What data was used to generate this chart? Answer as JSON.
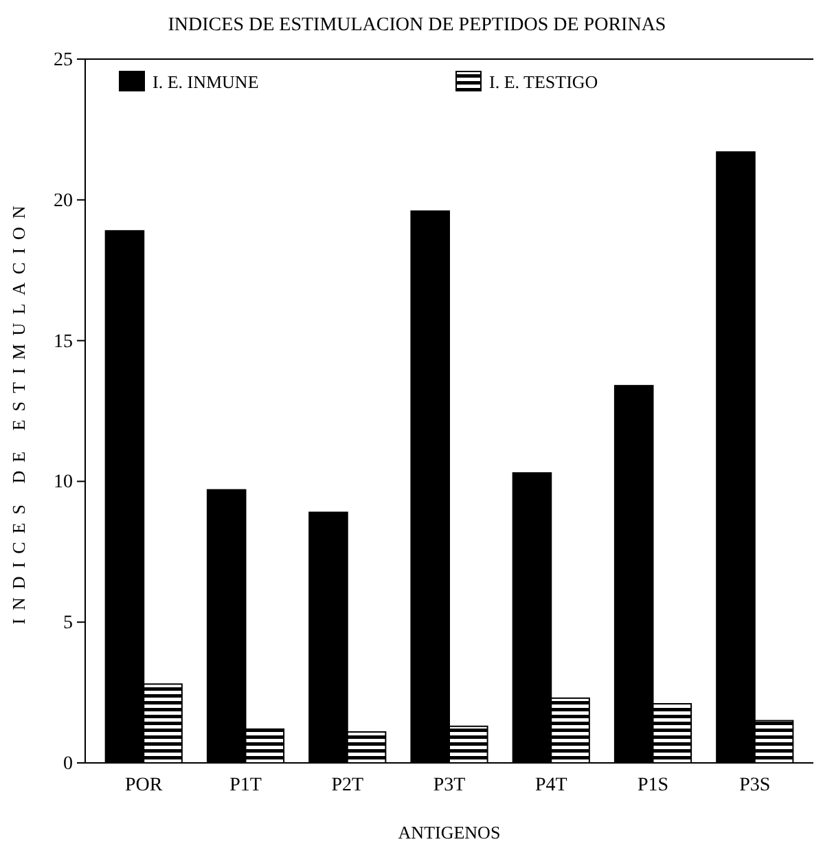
{
  "chart_data": {
    "type": "bar",
    "title": "INDICES DE ESTIMULACION DE PEPTIDOS DE PORINAS",
    "xlabel": "ANTIGENOS",
    "ylabel": "INDICES DE ESTIMULACION",
    "categories": [
      "POR",
      "P1T",
      "P2T",
      "P3T",
      "P4T",
      "P1S",
      "P3S"
    ],
    "series": [
      {
        "name": "I. E. INMUNE",
        "color": "#000000",
        "values": [
          18.9,
          9.7,
          8.9,
          19.6,
          10.3,
          13.4,
          21.7
        ]
      },
      {
        "name": "I. E. TESTIGO",
        "color": "#000000",
        "values": [
          2.8,
          1.2,
          1.1,
          1.3,
          2.3,
          2.1,
          1.5
        ]
      }
    ],
    "ylim": [
      0,
      25
    ],
    "yticks": [
      0,
      5,
      10,
      15,
      20,
      25
    ],
    "grid": false,
    "legend": "top"
  }
}
